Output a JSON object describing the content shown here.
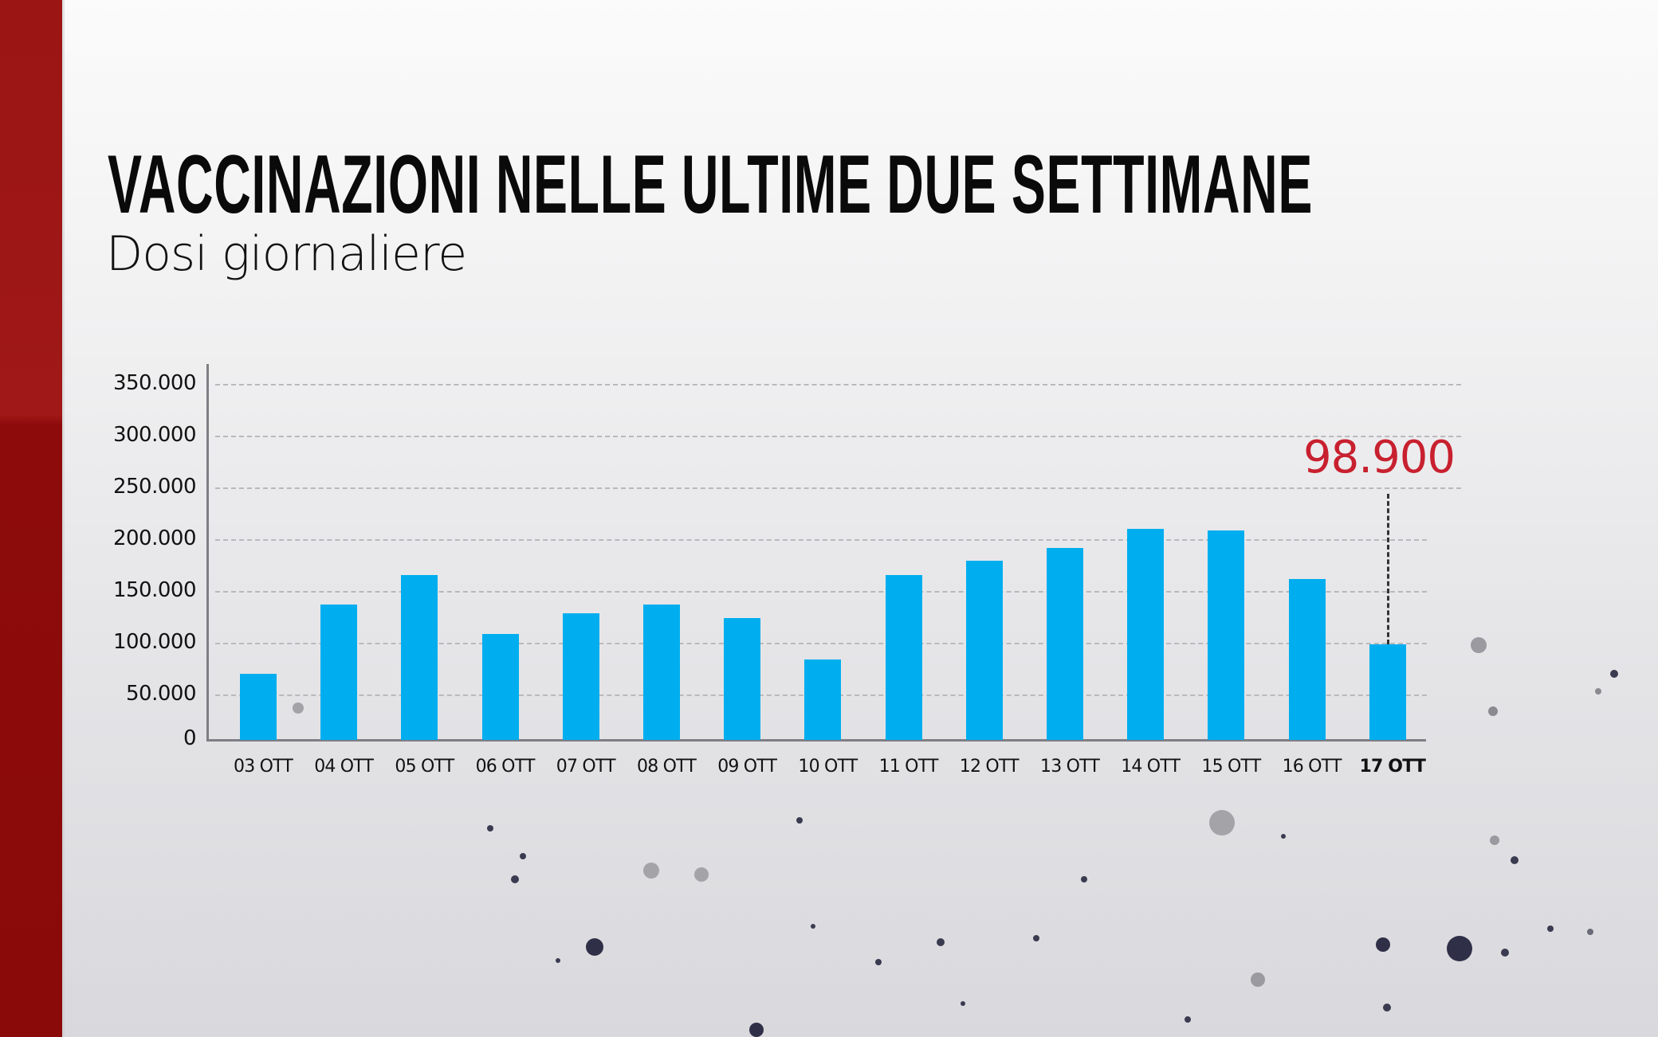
{
  "header": {
    "title": "VACCINAZIONI NELLE ULTIME DUE SETTIMANE",
    "subtitle": "Dosi giornaliere"
  },
  "colors": {
    "bar": "#00aeef",
    "highlight": "#c8202f",
    "band": "#9b1515",
    "text": "#111111"
  },
  "yaxis": {
    "ticks": [
      "350.000",
      "300.000",
      "250.000",
      "200.000",
      "150.000",
      "100.000",
      "50.000",
      "0"
    ]
  },
  "callout": {
    "label": "98.900",
    "category": "17 OTT"
  },
  "chart_data": {
    "type": "bar",
    "title": "VACCINAZIONI NELLE ULTIME DUE SETTIMANE",
    "subtitle": "Dosi giornaliere",
    "xlabel": "",
    "ylabel": "",
    "categories": [
      "03 OTT",
      "04 OTT",
      "05 OTT",
      "06 OTT",
      "07 OTT",
      "08 OTT",
      "09 OTT",
      "10 OTT",
      "11 OTT",
      "12 OTT",
      "13 OTT",
      "14 OTT",
      "15 OTT",
      "16 OTT",
      "17 OTT"
    ],
    "values": [
      71000,
      138000,
      166000,
      109000,
      129000,
      138000,
      125000,
      85000,
      166000,
      180000,
      192000,
      211000,
      209000,
      162000,
      98900
    ],
    "ylim": [
      0,
      350000
    ],
    "yticks": [
      0,
      50000,
      100000,
      150000,
      200000,
      250000,
      300000,
      350000
    ],
    "grid": true,
    "gridstyle": "dashed horizontal",
    "highlighted_category": "17 OTT",
    "annotations": [
      {
        "category": "17 OTT",
        "text": "98.900",
        "color": "#c8202f"
      }
    ],
    "legend": null
  }
}
